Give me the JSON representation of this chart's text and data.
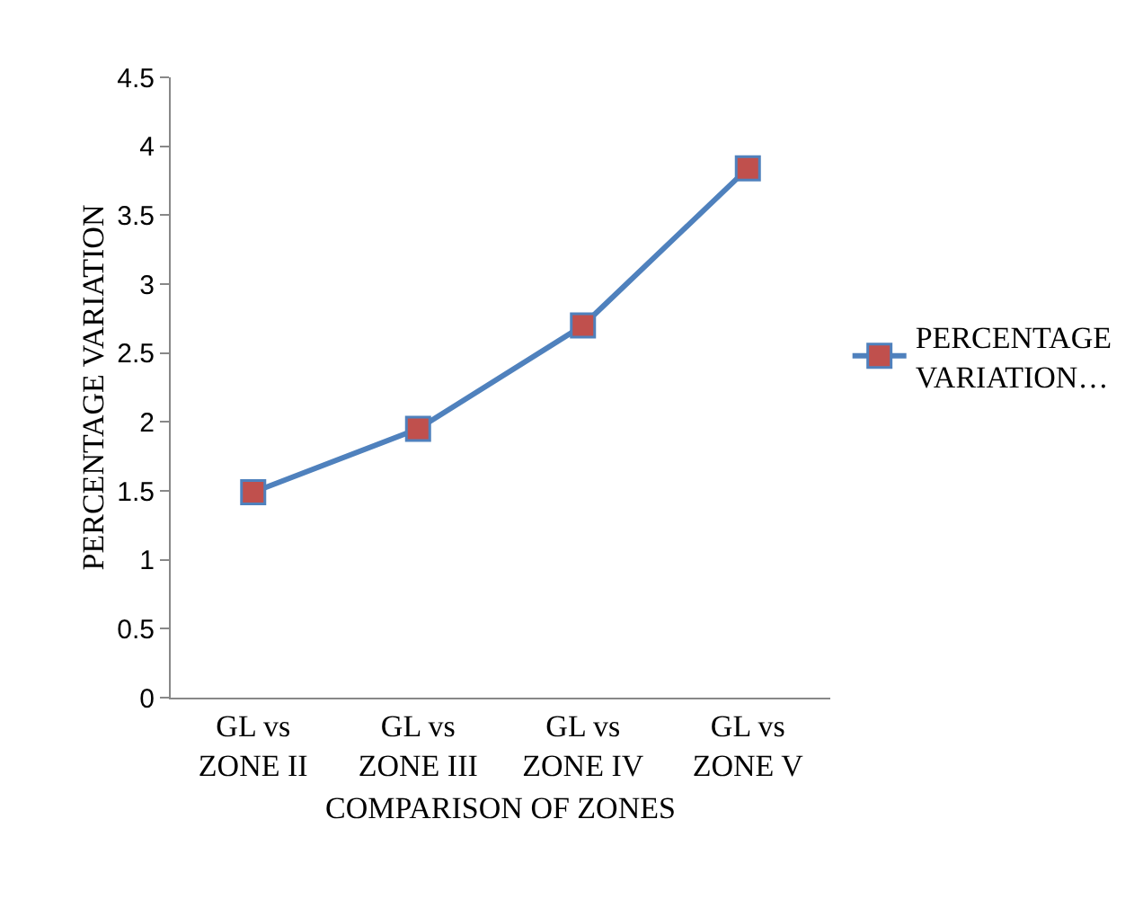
{
  "chart_data": {
    "type": "line",
    "xlabel": "COMPARISON OF ZONES",
    "ylabel": "PERCENTAGE VARIATION",
    "categories": [
      "GL vs ZONE II",
      "GL vs ZONE III",
      "GL vs ZONE IV",
      "GL vs ZONE V"
    ],
    "series": [
      {
        "name": "PERCENTAGE VARIATION…",
        "color": "#4f81bd",
        "values": [
          1.49,
          1.95,
          2.7,
          3.84
        ]
      }
    ],
    "ylim": [
      0,
      4.5
    ],
    "yticks": [
      0,
      0.5,
      1,
      1.5,
      2,
      2.5,
      3,
      3.5,
      4,
      4.5
    ],
    "grid": false,
    "legend": "right",
    "marker": "square",
    "line_style": "solid"
  }
}
